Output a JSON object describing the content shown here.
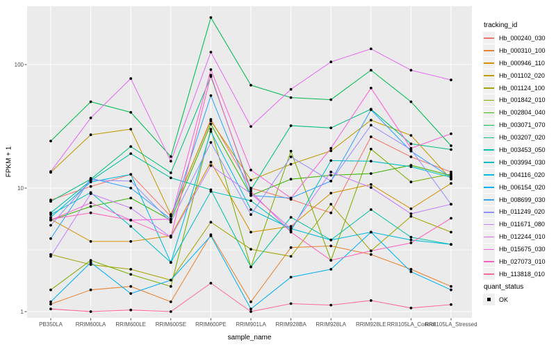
{
  "figure": {
    "background": "#FFFFFF",
    "panel_bg": "#EBEBEB",
    "grid_color": "#FFFFFF",
    "tick_color": "#333333",
    "axis_text_color": "#4D4D4D",
    "point_color": "#000000",
    "legend_key_bg": "#F0F0F0"
  },
  "axes": {
    "x_title": "sample_name",
    "y_title": "FPKM + 1"
  },
  "legend": {
    "tracking_title": "tracking_id",
    "quant_title": "quant_status",
    "quant_value": "OK"
  },
  "chart_data": {
    "type": "line",
    "title": "",
    "xlabel": "sample_name",
    "ylabel": "FPKM + 1",
    "y_scale": "log10",
    "y_breaks": [
      100,
      10,
      1
    ],
    "y_minor_breaks": [
      31.62,
      3.162
    ],
    "ylim": [
      0.9,
      320
    ],
    "grid": true,
    "legend_position": "right",
    "point_shape": "filled-square-black",
    "quant_status": "OK",
    "categories": [
      "PB350LA",
      "RRIM600LA",
      "RRIM600LE",
      "RRIM600SE",
      "RRIM600PE",
      "RRIM901LA",
      "RRIM928BA",
      "RRIM928LA",
      "RRIM928LE",
      "RRII105LA_Control",
      "RRII105LA_Stressed"
    ],
    "series": [
      {
        "name": "Hb_000240_030",
        "color": "#F8766D",
        "values": [
          8.0,
          10.3,
          12.9,
          5.9,
          36.0,
          10.0,
          8.1,
          6.3,
          26.0,
          17.9,
          13.5
        ]
      },
      {
        "name": "Hb_000310_100",
        "color": "#EA8331",
        "values": [
          1.15,
          1.5,
          1.6,
          1.2,
          4.2,
          1.2,
          3.3,
          3.4,
          2.9,
          2.2,
          1.6
        ]
      },
      {
        "name": "Hb_000946_110",
        "color": "#D89000",
        "values": [
          5.6,
          3.7,
          3.7,
          4.1,
          16.2,
          4.4,
          4.9,
          9.1,
          10.7,
          6.8,
          10.9
        ]
      },
      {
        "name": "Hb_001102_020",
        "color": "#C09B00",
        "values": [
          13.4,
          27.0,
          30.0,
          6.1,
          35.0,
          11.6,
          15.6,
          20.0,
          35.5,
          26.7,
          11.8
        ]
      },
      {
        "name": "Hb_001124_100",
        "color": "#A3A500",
        "values": [
          2.9,
          2.4,
          2.2,
          1.8,
          5.3,
          3.2,
          2.8,
          7.4,
          3.1,
          5.9,
          4.4
        ]
      },
      {
        "name": "Hb_001842_010",
        "color": "#7CAE00",
        "values": [
          1.5,
          2.6,
          2.0,
          1.6,
          30.0,
          2.3,
          19.9,
          2.6,
          20.7,
          11.2,
          13.0
        ]
      },
      {
        "name": "Hb_002804_040",
        "color": "#39B600",
        "values": [
          5.5,
          7.1,
          8.3,
          5.5,
          33.0,
          8.7,
          11.8,
          12.7,
          13.1,
          15.3,
          12.6
        ]
      },
      {
        "name": "Hb_003071_070",
        "color": "#00BB4E",
        "values": [
          24.0,
          50.0,
          41.0,
          18.0,
          240.0,
          68.0,
          54.0,
          52.0,
          90.0,
          50.0,
          22.0
        ]
      },
      {
        "name": "Hb_003207_020",
        "color": "#00BF7D",
        "values": [
          7.8,
          11.8,
          21.7,
          13.3,
          80.0,
          9.7,
          32.0,
          30.7,
          43.5,
          22.8,
          20.5
        ]
      },
      {
        "name": "Hb_003453_050",
        "color": "#00C1A3",
        "values": [
          6.3,
          11.5,
          19.0,
          12.1,
          9.7,
          2.3,
          5.8,
          3.8,
          6.7,
          4.0,
          3.5
        ]
      },
      {
        "name": "Hb_003994_030",
        "color": "#00BFC4",
        "values": [
          6.1,
          9.2,
          4.9,
          2.5,
          9.4,
          7.9,
          4.5,
          16.7,
          16.5,
          14.9,
          12.2
        ]
      },
      {
        "name": "Hb_004116_020",
        "color": "#00BAE0",
        "values": [
          5.8,
          11.2,
          12.9,
          2.5,
          28.7,
          6.7,
          4.7,
          3.8,
          4.4,
          3.8,
          3.5
        ]
      },
      {
        "name": "Hb_006154_020",
        "color": "#00B0F6",
        "values": [
          1.2,
          2.5,
          1.4,
          1.8,
          4.1,
          1.05,
          1.9,
          2.2,
          4.4,
          2.1,
          1.5
        ]
      },
      {
        "name": "Hb_008699_030",
        "color": "#35A2FF",
        "values": [
          3.9,
          12.0,
          10.0,
          5.6,
          56.0,
          8.7,
          8.3,
          11.4,
          43.0,
          19.9,
          12.2
        ]
      },
      {
        "name": "Hb_011249_020",
        "color": "#9590FF",
        "values": [
          5.0,
          11.6,
          11.4,
          5.3,
          23.4,
          6.1,
          17.9,
          11.4,
          32.3,
          20.5,
          7.4
        ]
      },
      {
        "name": "Hb_011671_080",
        "color": "#C77CFF",
        "values": [
          2.8,
          9.0,
          6.9,
          4.0,
          15.2,
          9.0,
          4.7,
          13.5,
          10.1,
          6.2,
          7.4
        ]
      },
      {
        "name": "Hb_012244_010",
        "color": "#E76BF3",
        "values": [
          13.6,
          37.0,
          77.0,
          16.5,
          126.0,
          31.5,
          63.0,
          105.0,
          134.0,
          90.0,
          75.0
        ]
      },
      {
        "name": "Hb_015675_030",
        "color": "#FA62DB",
        "values": [
          5.5,
          7.6,
          5.5,
          5.6,
          91.0,
          14.0,
          8.3,
          21.0,
          64.5,
          21.0,
          27.5
        ]
      },
      {
        "name": "Hb_027073_010",
        "color": "#FF62BC",
        "values": [
          5.6,
          6.3,
          5.5,
          4.0,
          82.0,
          9.4,
          4.4,
          2.6,
          3.1,
          3.6,
          5.7
        ]
      },
      {
        "name": "Hb_113818_010",
        "color": "#FF6A98",
        "values": [
          1.05,
          1.0,
          1.03,
          1.0,
          1.7,
          1.0,
          1.16,
          1.13,
          1.23,
          1.07,
          1.14
        ]
      }
    ]
  }
}
